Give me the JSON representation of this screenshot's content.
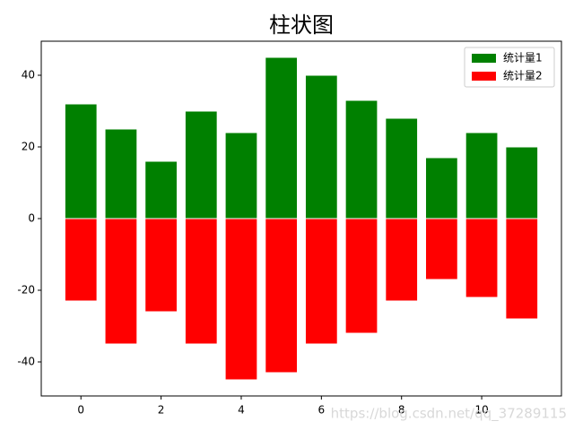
{
  "chart_data": {
    "type": "bar",
    "title": "柱状图",
    "x": [
      0,
      1,
      2,
      3,
      4,
      5,
      6,
      7,
      8,
      9,
      10,
      11
    ],
    "series": [
      {
        "name": "统计量1",
        "color": "#008000",
        "values": [
          32,
          25,
          16,
          30,
          24,
          45,
          40,
          33,
          28,
          17,
          24,
          20
        ]
      },
      {
        "name": "统计量2",
        "color": "#ff0000",
        "values": [
          -23,
          -35,
          -26,
          -35,
          -45,
          -43,
          -35,
          -32,
          -23,
          -17,
          -22,
          -28
        ]
      }
    ],
    "xlim": [
      -0.99,
      11.99
    ],
    "xticks": [
      0,
      2,
      4,
      6,
      8,
      10
    ],
    "ylim": [
      -49.5,
      49.5
    ],
    "yticks": [
      -40,
      -20,
      0,
      20,
      40
    ],
    "legend": "upper right",
    "watermark": "https://blog.csdn.net/qq_37289115"
  }
}
